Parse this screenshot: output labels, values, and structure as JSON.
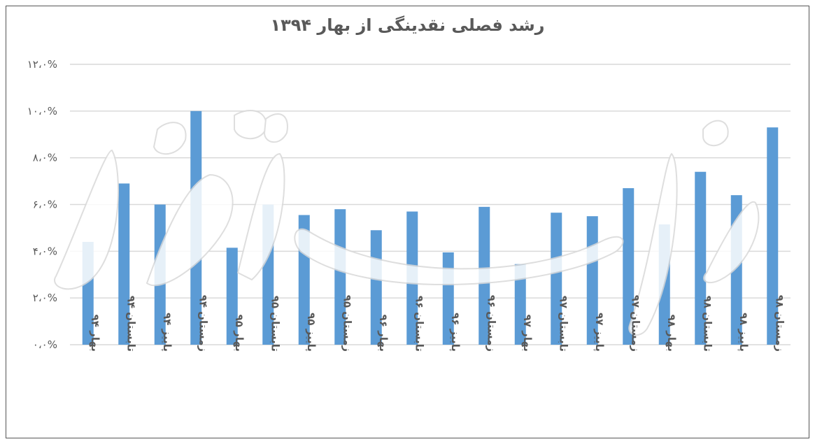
{
  "chart_data": {
    "type": "bar",
    "title": "رشد فصلی نقدینگی از بهار ۱۳۹۴",
    "xlabel": "",
    "ylabel": "",
    "ylim": [
      0,
      12
    ],
    "y_ticks": [
      "۰،۰%",
      "۲،۰%",
      "۴،۰%",
      "۶،۰%",
      "۸،۰%",
      "۱۰،۰%",
      "۱۲،۰%"
    ],
    "grid": true,
    "legend": "none",
    "bar_color": "#5b9bd5",
    "categories": [
      "بهار ۹۴",
      "تابستان ۹۴",
      "پاییز ۹۴",
      "زمستان ۹۴",
      "بهار ۹۵",
      "تابستان ۹۵",
      "پاییز ۹۵",
      "زمستان ۹۵",
      "بهار ۹۶",
      "تابستان ۹۶",
      "پاییز ۹۶",
      "زمستان ۹۶",
      "بهار ۹۷",
      "تابستان ۹۷",
      "پاییز ۹۷",
      "زمستان ۹۷",
      "بهار ۹۸",
      "تابستان ۹۸",
      "پاییز ۹۸",
      "زمستان ۹۸"
    ],
    "values": [
      4.4,
      6.9,
      6.0,
      10.0,
      4.15,
      6.0,
      5.55,
      5.8,
      4.9,
      5.7,
      3.95,
      5.9,
      3.45,
      5.65,
      5.5,
      6.7,
      5.15,
      7.4,
      6.4,
      9.3
    ]
  },
  "watermark": "دنیای اقتصاد"
}
